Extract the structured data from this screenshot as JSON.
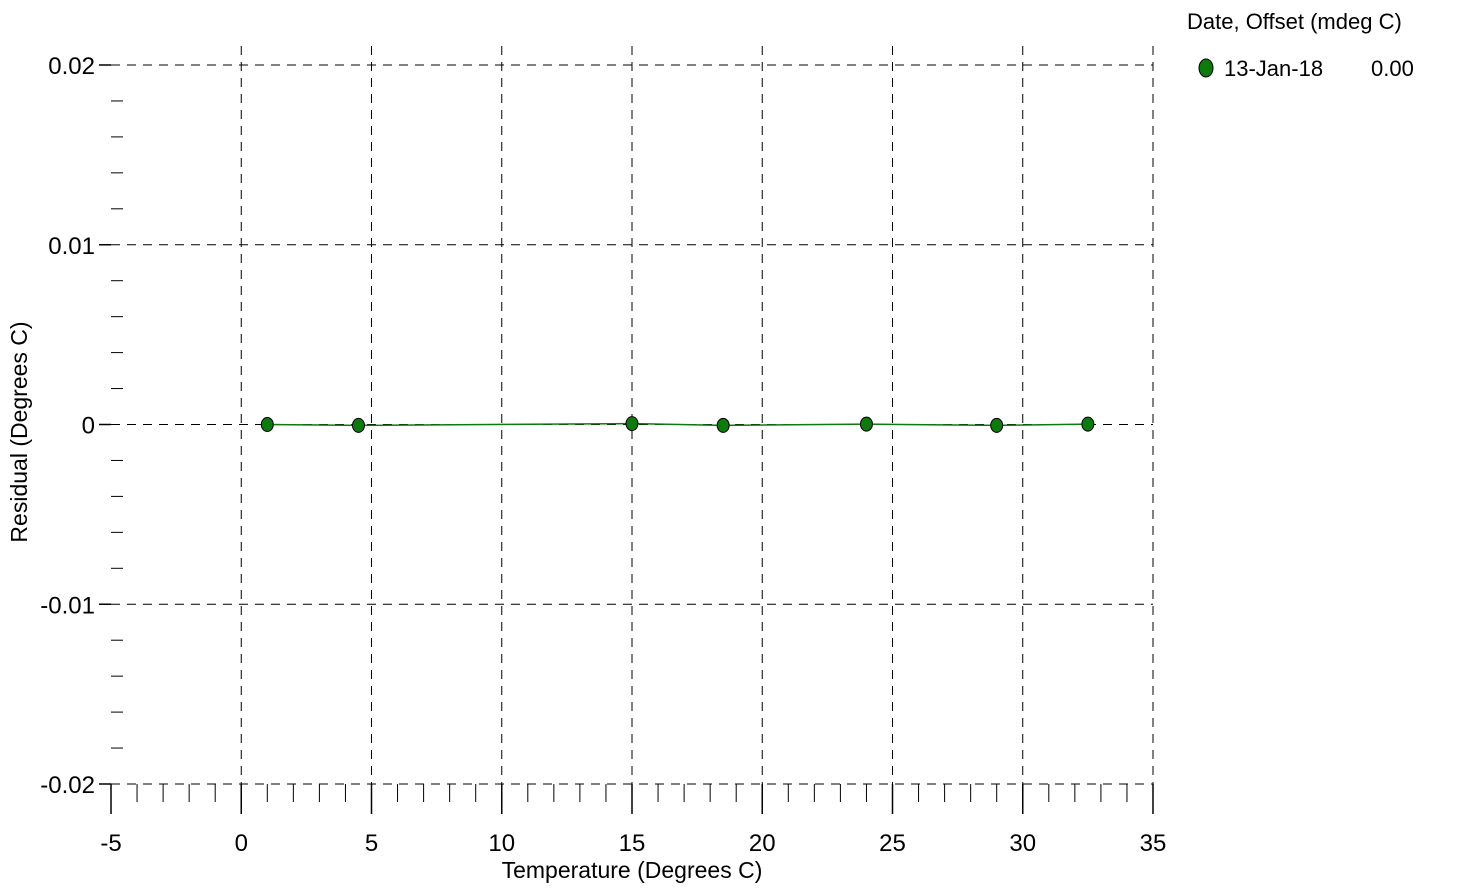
{
  "chart_data": {
    "type": "line",
    "xlabel": "Temperature (Degrees C)",
    "ylabel": "Residual (Degrees C)",
    "xlim": [
      -5,
      35
    ],
    "ylim": [
      -0.02,
      0.02
    ],
    "x_ticks": [
      "-5",
      "0",
      "5",
      "10",
      "15",
      "20",
      "25",
      "30",
      "35"
    ],
    "y_ticks": [
      "0.02",
      "0.01",
      "0",
      "-0.01",
      "-0.02"
    ],
    "grid": true,
    "legend": {
      "title": "Date, Offset (mdeg C)",
      "placement": "top-right",
      "entries": [
        {
          "date": "13-Jan-18",
          "offset": "0.00",
          "color": "#0d7a0d"
        }
      ]
    },
    "series": [
      {
        "color": "#0d7a0d",
        "x": [
          1.0,
          4.5,
          15.0,
          18.5,
          24.0,
          29.0,
          32.5
        ],
        "y": [
          0.0,
          -5e-05,
          5e-05,
          -5e-05,
          2e-05,
          -5e-05,
          2e-05
        ]
      }
    ]
  }
}
